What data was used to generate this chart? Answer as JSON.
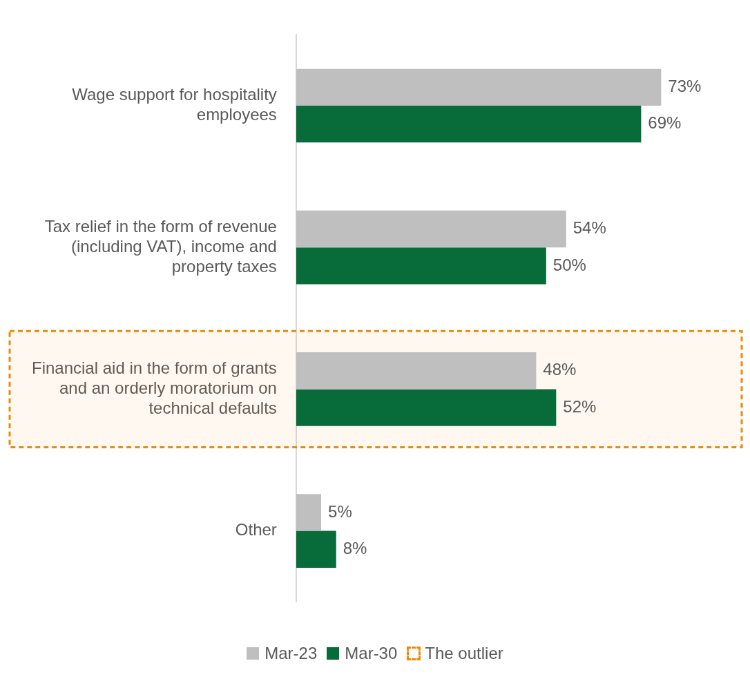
{
  "chart_data": {
    "type": "bar",
    "orientation": "horizontal",
    "categories": [
      "Wage support for hospitality employees",
      "Tax relief in the form of revenue (including VAT), income and property taxes",
      "Financial aid in the form of grants and an orderly moratorium on technical defaults",
      "Other"
    ],
    "series": [
      {
        "name": "Mar-23",
        "color": "#bfbfbf",
        "values": [
          73,
          54,
          48,
          5
        ],
        "value_labels": [
          "73%",
          "54%",
          "48%",
          "5%"
        ]
      },
      {
        "name": "Mar-30",
        "color": "#076b3a",
        "values": [
          69,
          50,
          52,
          8
        ],
        "value_labels": [
          "69%",
          "50%",
          "52%",
          "8%"
        ]
      }
    ],
    "tick_labels": "y",
    "bands": [
      {
        "axis": "y",
        "from": "Financial aid in the form of grants and an orderly moratorium on technical defaults",
        "to": "Financial aid in the form of grants and an orderly moratorium on technical defaults",
        "label": "The outlier",
        "color": "#ed8b00"
      }
    ],
    "legend": "bottom"
  }
}
